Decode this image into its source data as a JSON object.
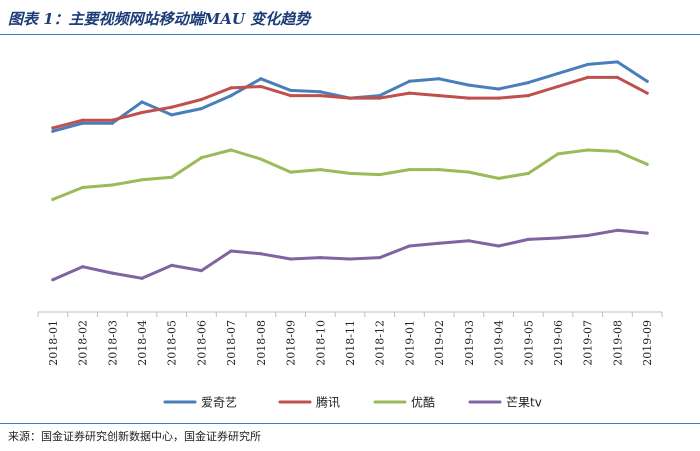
{
  "title": "图表 1：主要视频网站移动端MAU 变化趋势",
  "source": "来源：国金证券研究创新数据中心，国金证券研究所",
  "chart_data": {
    "type": "line",
    "title": "图表 1：主要视频网站移动端MAU 变化趋势",
    "xlabel": "",
    "ylabel": "",
    "ylim": [
      0,
      100
    ],
    "grid": false,
    "legend": "bottom",
    "categories": [
      "2018-01",
      "2018-02",
      "2018-03",
      "2018-04",
      "2018-05",
      "2018-06",
      "2018-07",
      "2018-08",
      "2018-09",
      "2018-10",
      "2018-11",
      "2018-12",
      "2019-01",
      "2019-02",
      "2019-03",
      "2019-04",
      "2019-05",
      "2019-06",
      "2019-07",
      "2019-08",
      "2019-09"
    ],
    "series": [
      {
        "name": "爱奇艺",
        "color": "#4a7ebb",
        "values": [
          65.5,
          68.4,
          68.4,
          76.1,
          71.4,
          73.7,
          78.4,
          84.5,
          80.3,
          79.8,
          77.5,
          78.4,
          83.6,
          84.5,
          82.2,
          80.8,
          83.1,
          86.4,
          89.7,
          90.6,
          83.6
        ]
      },
      {
        "name": "腾讯",
        "color": "#c0504d",
        "values": [
          66.7,
          69.5,
          69.5,
          72.3,
          74.2,
          77.0,
          81.2,
          81.7,
          78.4,
          78.4,
          77.5,
          77.5,
          79.3,
          78.4,
          77.5,
          77.5,
          78.4,
          81.7,
          85.0,
          85.0,
          79.3
        ]
      },
      {
        "name": "优酷",
        "color": "#9bbb59",
        "values": [
          40.8,
          45.1,
          46.0,
          47.9,
          48.8,
          55.9,
          58.7,
          55.4,
          50.7,
          51.6,
          50.2,
          49.8,
          51.6,
          51.6,
          50.7,
          48.4,
          50.2,
          57.3,
          58.7,
          58.2,
          53.5
        ]
      },
      {
        "name": "芒果tv",
        "color": "#8064a2",
        "values": [
          11.7,
          16.4,
          14.1,
          12.2,
          16.9,
          15.0,
          22.1,
          21.1,
          19.2,
          19.7,
          19.2,
          19.7,
          23.9,
          24.9,
          25.8,
          23.9,
          26.3,
          26.8,
          27.7,
          29.6,
          28.6
        ]
      }
    ]
  }
}
